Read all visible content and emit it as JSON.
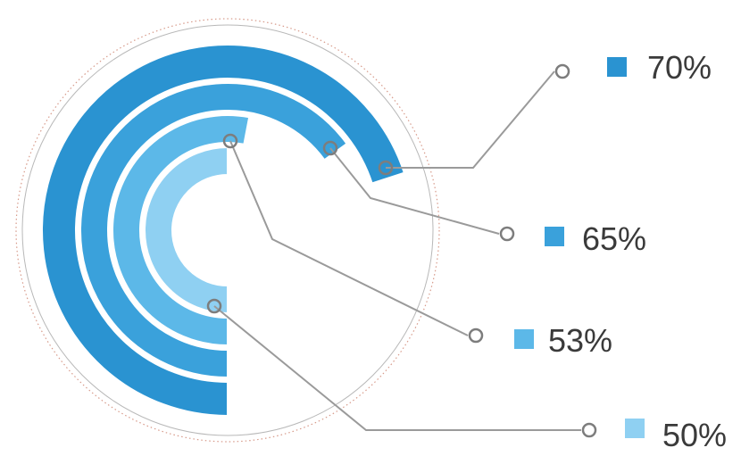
{
  "chart_data": {
    "type": "radial-bar",
    "series": [
      {
        "label": "70%",
        "value": 70,
        "color": "#2a93d1"
      },
      {
        "label": "65%",
        "value": 65,
        "color": "#3aa1db"
      },
      {
        "label": "53%",
        "value": 53,
        "color": "#5cb8e8"
      },
      {
        "label": "50%",
        "value": 50,
        "color": "#8fd0f2"
      }
    ],
    "max": 100,
    "grid": false,
    "legend": "right"
  }
}
